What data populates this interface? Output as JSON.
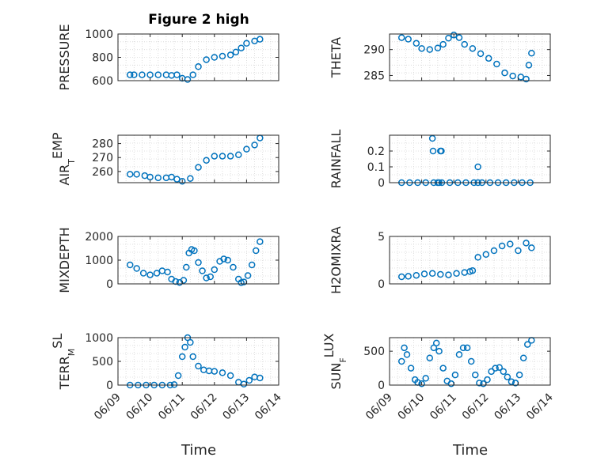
{
  "figure_title": "Figure 2 high",
  "colors": {
    "marker": "#0072BD",
    "axis": "#262626",
    "grid": "#d6d6d6"
  },
  "chart_data": [
    {
      "type": "scatter",
      "ylabel": "PRESSURE",
      "ylim": [
        600,
        1000
      ],
      "yticks": [
        "600",
        "800",
        "1000"
      ],
      "grid": true,
      "series": [
        {
          "x": [
            "06/09 09:00",
            "06/09 12:00",
            "06/09 18:00",
            "06/10 00:00",
            "06/10 06:00",
            "06/10 12:00",
            "06/10 16:00",
            "06/10 20:00",
            "06/11 00:00",
            "06/11 04:00",
            "06/11 08:00",
            "06/11 12:00",
            "06/11 18:00",
            "06/12 00:00",
            "06/12 06:00",
            "06/12 12:00",
            "06/12 16:00",
            "06/12 20:00",
            "06/13 00:00",
            "06/13 06:00",
            "06/13 10:00"
          ],
          "y": [
            650,
            650,
            650,
            650,
            650,
            650,
            645,
            650,
            620,
            610,
            650,
            720,
            780,
            800,
            810,
            820,
            845,
            880,
            920,
            940,
            955
          ]
        }
      ]
    },
    {
      "type": "scatter",
      "ylabel": "THETA",
      "ylim": [
        284,
        293
      ],
      "yticks": [
        "285",
        "290"
      ],
      "grid": true,
      "series": [
        {
          "x": [
            "06/09 09:00",
            "06/09 14:00",
            "06/09 20:00",
            "06/10 00:00",
            "06/10 06:00",
            "06/10 12:00",
            "06/10 16:00",
            "06/10 20:00",
            "06/11 00:00",
            "06/11 04:00",
            "06/11 08:00",
            "06/11 14:00",
            "06/11 20:00",
            "06/12 02:00",
            "06/12 08:00",
            "06/12 14:00",
            "06/12 20:00",
            "06/13 02:00",
            "06/13 06:00",
            "06/13 08:00",
            "06/13 10:00"
          ],
          "y": [
            292.3,
            292,
            291.2,
            290.2,
            290,
            290.3,
            291,
            292.2,
            292.8,
            292.3,
            291,
            290.2,
            289.2,
            288.3,
            287.2,
            285.5,
            284.9,
            284.7,
            284.3,
            287,
            289.3
          ]
        }
      ]
    },
    {
      "type": "scatter",
      "ylabel": "AIR_TEMP",
      "ylim": [
        252,
        286
      ],
      "yticks": [
        "260",
        "270",
        "280"
      ],
      "grid": true,
      "series": [
        {
          "x": [
            "06/09 09:00",
            "06/09 14:00",
            "06/09 20:00",
            "06/10 00:00",
            "06/10 06:00",
            "06/10 12:00",
            "06/10 16:00",
            "06/10 20:00",
            "06/11 00:00",
            "06/11 06:00",
            "06/11 12:00",
            "06/11 18:00",
            "06/12 00:00",
            "06/12 06:00",
            "06/12 12:00",
            "06/12 18:00",
            "06/13 00:00",
            "06/13 06:00",
            "06/13 10:00"
          ],
          "y": [
            258,
            258,
            257,
            256,
            255.5,
            255.5,
            256,
            254.5,
            253,
            255,
            263,
            268,
            271,
            271,
            271,
            272,
            276,
            279,
            284
          ]
        }
      ]
    },
    {
      "type": "scatter",
      "ylabel": "RAINFALL",
      "ylim": [
        0,
        0.3
      ],
      "yticks": [
        "0",
        "0.1",
        "0.2"
      ],
      "grid": true,
      "series": [
        {
          "x": [
            "06/09 09:00",
            "06/09 15:00",
            "06/09 21:00",
            "06/10 03:00",
            "06/10 09:00",
            "06/10 12:00",
            "06/10 13:00",
            "06/10 15:00",
            "06/10 21:00",
            "06/11 03:00",
            "06/11 09:00",
            "06/11 15:00",
            "06/11 18:00",
            "06/11 21:00",
            "06/12 03:00",
            "06/12 09:00",
            "06/12 15:00",
            "06/12 21:00",
            "06/13 03:00",
            "06/13 09:00",
            "06/10 08:00",
            "06/10 08:30",
            "06/10 14:00",
            "06/10 14:40",
            "06/11 18:00"
          ],
          "y": [
            0,
            0,
            0,
            0,
            0,
            0,
            0,
            0,
            0,
            0,
            0,
            0,
            0,
            0,
            0,
            0,
            0,
            0,
            0,
            0,
            0.28,
            0.2,
            0.2,
            0.2,
            0.1
          ]
        }
      ]
    },
    {
      "type": "scatter",
      "ylabel": "MIXDEPTH",
      "ylim": [
        0,
        2000
      ],
      "yticks": [
        "0",
        "1000",
        "2000"
      ],
      "grid": true,
      "series": [
        {
          "x": [
            "06/09 09:00",
            "06/09 14:00",
            "06/09 19:00",
            "06/10 00:00",
            "06/10 05:00",
            "06/10 09:00",
            "06/10 13:00",
            "06/10 16:00",
            "06/10 19:00",
            "06/10 22:00",
            "06/11 01:00",
            "06/11 03:00",
            "06/11 05:00",
            "06/11 07:00",
            "06/11 09:00",
            "06/11 12:00",
            "06/11 15:00",
            "06/11 18:00",
            "06/11 21:00",
            "06/12 00:00",
            "06/12 04:00",
            "06/12 07:00",
            "06/12 10:00",
            "06/12 14:00",
            "06/12 18:00",
            "06/12 20:00",
            "06/12 22:00",
            "06/13 01:00",
            "06/13 04:00",
            "06/13 07:00",
            "06/13 10:00"
          ],
          "y": [
            800,
            650,
            450,
            380,
            450,
            550,
            500,
            200,
            100,
            60,
            150,
            700,
            1300,
            1450,
            1400,
            900,
            550,
            250,
            300,
            600,
            950,
            1050,
            1000,
            700,
            200,
            50,
            80,
            350,
            800,
            1400,
            1780
          ]
        }
      ]
    },
    {
      "type": "scatter",
      "ylabel": "H2OMIXRA",
      "ylim": [
        0,
        5
      ],
      "yticks": [
        "0",
        "5"
      ],
      "grid": true,
      "series": [
        {
          "x": [
            "06/09 09:00",
            "06/09 14:00",
            "06/09 20:00",
            "06/10 02:00",
            "06/10 08:00",
            "06/10 14:00",
            "06/10 20:00",
            "06/11 02:00",
            "06/11 08:00",
            "06/11 12:00",
            "06/11 14:00",
            "06/11 18:00",
            "06/12 00:00",
            "06/12 06:00",
            "06/12 12:00",
            "06/12 18:00",
            "06/13 00:00",
            "06/13 06:00",
            "06/13 10:00"
          ],
          "y": [
            0.75,
            0.8,
            0.9,
            1.05,
            1.1,
            1.0,
            0.95,
            1.1,
            1.2,
            1.3,
            1.4,
            2.8,
            3.1,
            3.5,
            4.0,
            4.2,
            3.5,
            4.3,
            3.8
          ]
        }
      ]
    },
    {
      "type": "scatter",
      "ylabel": "TERR_MSL",
      "ylim": [
        0,
        1000
      ],
      "yticks": [
        "0",
        "500",
        "1000"
      ],
      "grid": true,
      "series": [
        {
          "x": [
            "06/09 09:00",
            "06/09 15:00",
            "06/09 21:00",
            "06/10 03:00",
            "06/10 09:00",
            "06/10 15:00",
            "06/10 18:00",
            "06/10 21:00",
            "06/11 00:00",
            "06/11 02:00",
            "06/11 04:00",
            "06/11 06:00",
            "06/11 08:00",
            "06/11 12:00",
            "06/11 16:00",
            "06/11 20:00",
            "06/12 00:00",
            "06/12 06:00",
            "06/12 12:00",
            "06/12 18:00",
            "06/12 22:00",
            "06/13 02:00",
            "06/13 06:00",
            "06/13 10:00"
          ],
          "y": [
            0,
            0,
            0,
            0,
            0,
            0,
            10,
            200,
            600,
            800,
            1000,
            900,
            600,
            400,
            320,
            300,
            290,
            260,
            200,
            60,
            20,
            100,
            170,
            150
          ]
        }
      ]
    },
    {
      "type": "scatter",
      "ylabel": "SUN_FLUX",
      "ylim": [
        0,
        700
      ],
      "yticks": [
        "0",
        "500"
      ],
      "grid": true,
      "series": [
        {
          "x": [
            "06/09 09:00",
            "06/09 11:00",
            "06/09 13:00",
            "06/09 16:00",
            "06/09 19:00",
            "06/09 21:00",
            "06/10 00:00",
            "06/10 03:00",
            "06/10 06:00",
            "06/10 09:00",
            "06/10 11:00",
            "06/10 13:00",
            "06/10 16:00",
            "06/10 19:00",
            "06/10 22:00",
            "06/11 01:00",
            "06/11 04:00",
            "06/11 07:00",
            "06/11 10:00",
            "06/11 13:00",
            "06/11 16:00",
            "06/11 19:00",
            "06/11 22:00",
            "06/12 01:00",
            "06/12 04:00",
            "06/12 07:00",
            "06/12 10:00",
            "06/12 13:00",
            "06/12 16:00",
            "06/12 19:00",
            "06/12 22:00",
            "06/13 01:00",
            "06/13 04:00",
            "06/13 07:00",
            "06/13 10:00"
          ],
          "y": [
            350,
            550,
            450,
            250,
            80,
            40,
            20,
            100,
            400,
            550,
            620,
            500,
            250,
            60,
            20,
            150,
            450,
            550,
            550,
            350,
            150,
            30,
            20,
            80,
            200,
            250,
            260,
            200,
            120,
            50,
            30,
            150,
            400,
            600,
            660
          ]
        }
      ]
    }
  ],
  "shared_x": {
    "label": "Time",
    "ticks": [
      "06/09",
      "06/10",
      "06/11",
      "06/12",
      "06/13",
      "06/14"
    ],
    "range": [
      "06/09",
      "06/14"
    ]
  }
}
